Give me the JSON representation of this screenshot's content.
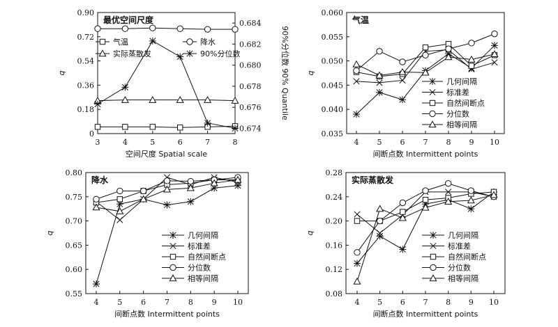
{
  "chart_data": [
    {
      "type": "line",
      "title": "最优空间尺度",
      "xlabel": "空间尺度 Spatial scale",
      "ylabel": "q",
      "y2label": "90%分位数 90% Quantile",
      "x": [
        3,
        4,
        5,
        6,
        7,
        8
      ],
      "xlim": [
        3,
        8
      ],
      "ylim": [
        0,
        0.9
      ],
      "yticks": [
        "0",
        "0.18",
        "0.36",
        "0.54",
        "0.72",
        "0.90"
      ],
      "y2lim": [
        0.6735,
        0.685
      ],
      "y2ticks": [
        "0.674",
        "0.676",
        "0.678",
        "0.680",
        "0.682",
        "0.684"
      ],
      "legend": "upper-center",
      "series": [
        {
          "name": "气温",
          "marker": "square",
          "axis": "left",
          "values": [
            0.05,
            0.05,
            0.05,
            0.045,
            0.05,
            0.055
          ]
        },
        {
          "name": "降水",
          "marker": "circle",
          "axis": "left",
          "values": [
            0.78,
            0.78,
            0.785,
            0.78,
            0.775,
            0.775
          ]
        },
        {
          "name": "实际蒸散发",
          "marker": "triangle",
          "axis": "left",
          "values": [
            0.245,
            0.25,
            0.25,
            0.25,
            0.25,
            0.245
          ]
        },
        {
          "name": "90%分位数",
          "marker": "asterisk",
          "axis": "right",
          "values": [
            0.6763,
            0.6779,
            0.6823,
            0.6808,
            0.6745,
            0.674
          ]
        }
      ]
    },
    {
      "type": "line",
      "title": "气温",
      "xlabel": "间断点数 Intermittent points",
      "ylabel": "q",
      "x": [
        4,
        5,
        6,
        7,
        8,
        9,
        10
      ],
      "xlim": [
        4,
        10
      ],
      "ylim": [
        0.035,
        0.06
      ],
      "yticks": [
        "0.035",
        "0.040",
        "0.045",
        "0.050",
        "0.055",
        "0.060"
      ],
      "legend": "lower-right",
      "series": [
        {
          "name": "几何间隔",
          "marker": "asterisk",
          "values": [
            0.039,
            0.0435,
            0.042,
            0.048,
            0.0515,
            0.0485,
            0.0532
          ]
        },
        {
          "name": "标准差",
          "marker": "x",
          "values": [
            0.0458,
            0.0455,
            0.046,
            0.052,
            0.0523,
            0.0483,
            0.0497
          ]
        },
        {
          "name": "自然间断点",
          "marker": "square",
          "values": [
            0.0477,
            0.0468,
            0.0473,
            0.0528,
            0.0535,
            0.049,
            0.0512
          ]
        },
        {
          "name": "分位数",
          "marker": "circle",
          "values": [
            0.048,
            0.052,
            0.0498,
            0.0512,
            0.0525,
            0.0537,
            0.0556
          ]
        },
        {
          "name": "相等间隔",
          "marker": "triangle",
          "values": [
            0.0493,
            0.047,
            0.0477,
            0.0476,
            0.0508,
            0.0503,
            0.0514
          ]
        }
      ]
    },
    {
      "type": "line",
      "title": "降水",
      "xlabel": "间断点数 Intermittent points",
      "ylabel": "q",
      "x": [
        4,
        5,
        6,
        7,
        8,
        9,
        10
      ],
      "xlim": [
        4,
        10
      ],
      "ylim": [
        0.55,
        0.8
      ],
      "yticks": [
        "0.55",
        "0.60",
        "0.65",
        "0.70",
        "0.75",
        "0.80"
      ],
      "legend": "lower-right",
      "series": [
        {
          "name": "几何间隔",
          "marker": "asterisk",
          "values": [
            0.57,
            0.735,
            0.745,
            0.733,
            0.74,
            0.768,
            0.773
          ]
        },
        {
          "name": "标准差",
          "marker": "x",
          "values": [
            0.74,
            0.702,
            0.745,
            0.79,
            0.775,
            0.79,
            0.78
          ]
        },
        {
          "name": "自然间断点",
          "marker": "square",
          "values": [
            0.738,
            0.745,
            0.762,
            0.775,
            0.778,
            0.785,
            0.785
          ]
        },
        {
          "name": "分位数",
          "marker": "circle",
          "values": [
            0.745,
            0.762,
            0.762,
            0.783,
            0.782,
            0.785,
            0.79
          ]
        },
        {
          "name": "相等间隔",
          "marker": "triangle",
          "values": [
            0.728,
            0.72,
            0.745,
            0.765,
            0.768,
            0.778,
            0.785
          ]
        }
      ]
    },
    {
      "type": "line",
      "title": "实际蒸散发",
      "xlabel": "间断点数 Intermittent points",
      "ylabel": "q",
      "x": [
        4,
        5,
        6,
        7,
        8,
        9,
        10
      ],
      "xlim": [
        4,
        10
      ],
      "ylim": [
        0.08,
        0.28
      ],
      "yticks": [
        "0.08",
        "0.12",
        "0.16",
        "0.20",
        "0.24",
        "0.28"
      ],
      "legend": "lower-right",
      "series": [
        {
          "name": "几何间隔",
          "marker": "asterisk",
          "values": [
            0.13,
            0.175,
            0.153,
            0.228,
            0.235,
            0.22,
            0.248
          ]
        },
        {
          "name": "标准差",
          "marker": "x",
          "values": [
            0.211,
            0.18,
            0.21,
            0.248,
            0.248,
            0.248,
            0.24
          ]
        },
        {
          "name": "自然间断点",
          "marker": "square",
          "values": [
            0.2,
            0.2,
            0.215,
            0.235,
            0.238,
            0.245,
            0.248
          ]
        },
        {
          "name": "分位数",
          "marker": "circle",
          "values": [
            0.148,
            0.2,
            0.23,
            0.25,
            0.262,
            0.25,
            0.24
          ]
        },
        {
          "name": "相等间隔",
          "marker": "triangle",
          "values": [
            0.1,
            0.22,
            0.205,
            0.222,
            0.232,
            0.234,
            0.243
          ]
        }
      ]
    }
  ]
}
